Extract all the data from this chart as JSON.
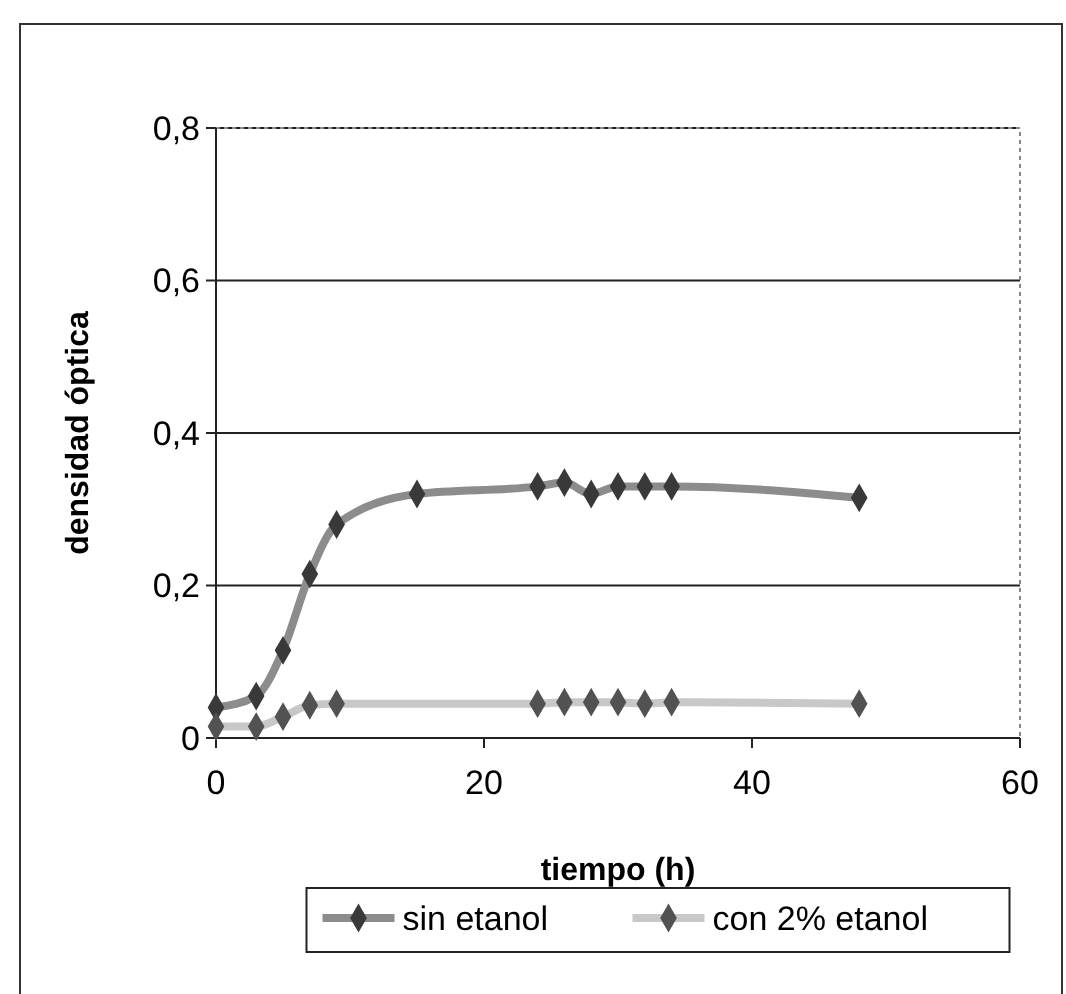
{
  "chart_data": {
    "type": "line",
    "xlabel": "tiempo (h)",
    "ylabel": "densidad óptica",
    "xlim": [
      0,
      60
    ],
    "xticks": [
      0,
      20,
      40,
      60
    ],
    "ylim": [
      0,
      0.8
    ],
    "yticks": [
      {
        "value": 0,
        "label": "0"
      },
      {
        "value": 0.2,
        "label": "0,2"
      },
      {
        "value": 0.4,
        "label": "0,4"
      },
      {
        "value": 0.6,
        "label": "0,6"
      },
      {
        "value": 0.8,
        "label": "0,8"
      }
    ],
    "grid": "y",
    "legend": "bottom",
    "marker": "diamond",
    "line_style": "solid",
    "series": [
      {
        "name": "sin etanol",
        "color": "#8c8c8c",
        "x": [
          0,
          3,
          5,
          7,
          9,
          15,
          24,
          26,
          28,
          30,
          32,
          34,
          48
        ],
        "values": [
          0.04,
          0.055,
          0.115,
          0.215,
          0.28,
          0.32,
          0.33,
          0.335,
          0.32,
          0.33,
          0.33,
          0.33,
          0.315
        ]
      },
      {
        "name": "con 2% etanol",
        "color": "#c8c8c8",
        "x": [
          0,
          3,
          5,
          7,
          9,
          24,
          26,
          28,
          30,
          32,
          34,
          48
        ],
        "values": [
          0.015,
          0.015,
          0.028,
          0.043,
          0.045,
          0.045,
          0.047,
          0.047,
          0.047,
          0.045,
          0.047,
          0.045
        ]
      }
    ]
  }
}
